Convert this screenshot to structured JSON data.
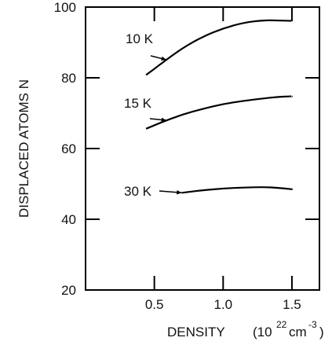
{
  "chart_data": {
    "type": "line",
    "xlabel_main": "DENSITY",
    "xlabel_unit_open": "(10",
    "xlabel_unit_exp1": "22",
    "xlabel_unit_mid": "cm",
    "xlabel_unit_exp2": "-3",
    "xlabel_unit_close": ")",
    "ylabel": "DISPLACED ATOMS N",
    "xlim": [
      0.0,
      1.7
    ],
    "ylim": [
      20,
      100
    ],
    "x_ticks": [
      {
        "value": 0.5,
        "label": "0.5"
      },
      {
        "value": 1.0,
        "label": "1.0"
      },
      {
        "value": 1.5,
        "label": "1.5"
      }
    ],
    "y_ticks": [
      {
        "value": 20,
        "label": "20"
      },
      {
        "value": 40,
        "label": "40"
      },
      {
        "value": 60,
        "label": "60"
      },
      {
        "value": 80,
        "label": "80"
      },
      {
        "value": 100,
        "label": "100"
      }
    ],
    "series": [
      {
        "name": "10 K",
        "x": [
          0.44,
          0.55,
          0.7,
          0.85,
          1.0,
          1.15,
          1.3,
          1.4,
          1.5
        ],
        "y": [
          80.8,
          84.0,
          88.3,
          91.6,
          94.0,
          95.6,
          96.3,
          96.2,
          96.1
        ]
      },
      {
        "name": "15 K",
        "x": [
          0.44,
          0.55,
          0.7,
          0.85,
          1.0,
          1.15,
          1.3,
          1.4,
          1.5
        ],
        "y": [
          65.6,
          67.4,
          69.6,
          71.2,
          72.6,
          73.5,
          74.2,
          74.6,
          74.8
        ]
      },
      {
        "name": "30 K",
        "x": [
          0.7,
          0.85,
          1.0,
          1.15,
          1.3,
          1.4,
          1.5
        ],
        "y": [
          47.5,
          48.2,
          48.7,
          49.0,
          49.1,
          48.9,
          48.5
        ]
      }
    ],
    "grid": false,
    "legend": "inline labels with arrows"
  }
}
